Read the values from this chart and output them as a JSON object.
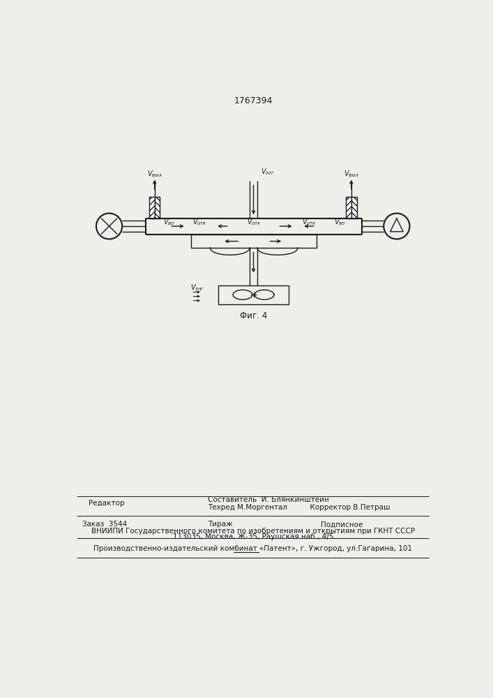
{
  "patent_number": "1767394",
  "fig_label": "Фиг. 4",
  "background_color": "#f0eeea",
  "line_color": "#1a1a1a",
  "text_color": "#1a1a1a",
  "footer": {
    "sostavitel": "Составитель  И. Блянкинштейн",
    "tehred": "Техред М.Моргентал",
    "korrektor": "Корректор В.Петраш",
    "redaktor": "Редактор",
    "zakaz": "Заказ  3544",
    "tirazh": "Тираж",
    "podpisnoe": "Подписное",
    "vniipи": "ВНИИПИ Государственного комитета по изобретениям и открытиям при ГКНТ СССР",
    "address": "113035, Москва, Ж-35, Раушская наб., 4/5",
    "production": "Производственно-издательский комбинат «Патент», г. Ужгород, ул.Гагарина, 101"
  },
  "labels": {
    "v_otg": "Vотг",
    "v_vyx_left": "Vвых",
    "v_vyx_right": "Vвых",
    "v_vo_left": "Vво",
    "v_vo_right": "Vво",
    "v_otk_1": "Vотк",
    "v_otk_2": "Vотк",
    "v_otk_3": "Vотк",
    "v_zng": "Vзнг"
  }
}
